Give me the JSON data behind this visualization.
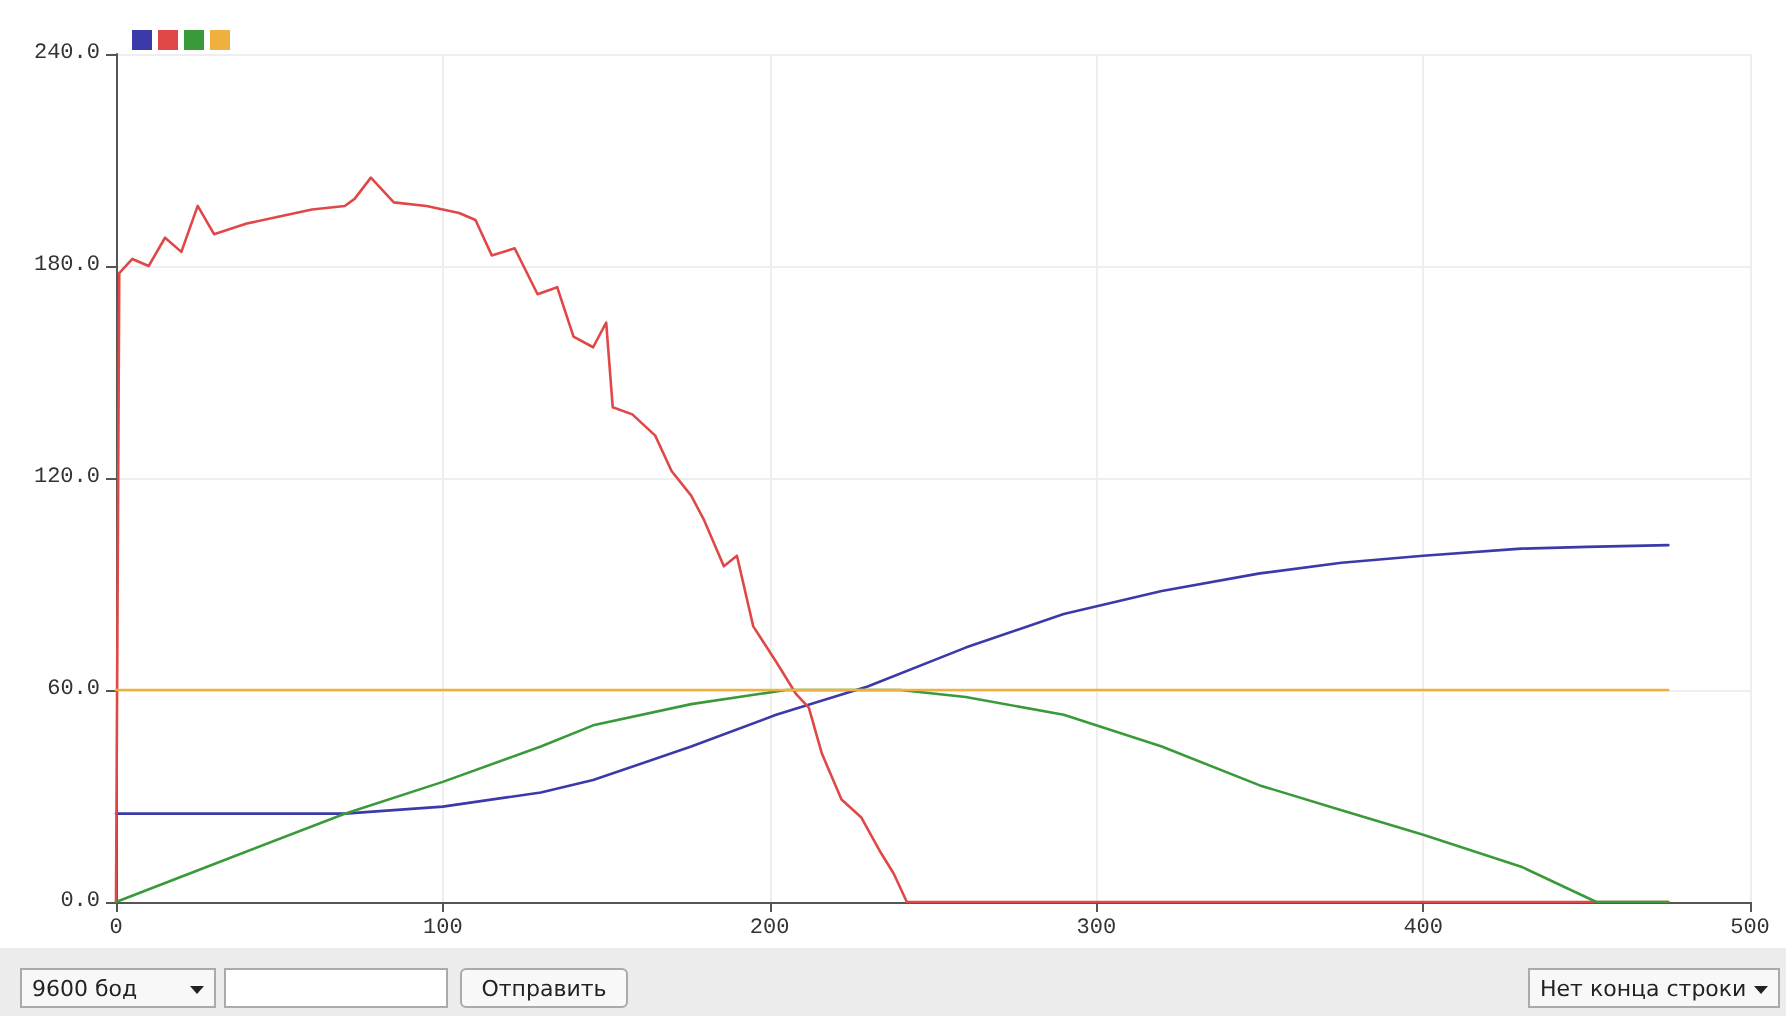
{
  "chart_data": {
    "type": "line",
    "xlim": [
      0,
      500
    ],
    "xticks": [
      0,
      100,
      200,
      300,
      400,
      500
    ],
    "ylim": [
      0,
      240
    ],
    "yticks": [
      {
        "value": 0,
        "label": "0.0"
      },
      {
        "value": 60,
        "label": "60.0"
      },
      {
        "value": 120,
        "label": "120.0"
      },
      {
        "value": 180,
        "label": "180.0"
      },
      {
        "value": 240,
        "label": "240.0"
      }
    ],
    "grid": true,
    "marker": "none",
    "line_style": "solid",
    "annotations": [
      "9600 бод",
      "Отправить",
      "Нет конца строки"
    ],
    "series": [
      {
        "color": "#3a3aa8",
        "x": [
          0,
          30,
          70,
          100,
          130,
          146,
          176,
          202,
          230,
          260,
          290,
          320,
          350,
          375,
          400,
          430,
          450,
          475
        ],
        "values": [
          25,
          25,
          25,
          27,
          31,
          34.5,
          44,
          53,
          61,
          72,
          81.5,
          88,
          93,
          96,
          98,
          100,
          100.5,
          101
        ]
      },
      {
        "color": "#e04848",
        "x": [
          0,
          1,
          5,
          10,
          15,
          20,
          25,
          30,
          40,
          50,
          60,
          70,
          73,
          78,
          85,
          95,
          105,
          110,
          115,
          122,
          129,
          135,
          140,
          146,
          150,
          152,
          158,
          165,
          170,
          176,
          180,
          186,
          190,
          195,
          202,
          208,
          212,
          216,
          222,
          228,
          234,
          238,
          242,
          243,
          300,
          400,
          475
        ],
        "values": [
          0,
          178,
          182,
          180,
          188,
          184,
          197,
          189,
          192,
          194,
          196,
          197,
          199,
          205,
          198,
          197,
          195,
          193,
          183,
          185,
          172,
          174,
          160,
          157,
          164,
          140,
          138,
          132,
          122,
          115,
          108,
          95,
          98,
          78,
          68,
          59,
          55,
          42,
          29,
          24,
          14,
          8,
          0,
          0,
          0,
          0,
          0
        ]
      },
      {
        "color": "#3a9a3a",
        "x": [
          0,
          35,
          70,
          100,
          130,
          146,
          176,
          205,
          220,
          240,
          260,
          290,
          320,
          350,
          375,
          400,
          430,
          453,
          475
        ],
        "values": [
          0,
          12.5,
          25,
          34,
          44,
          50,
          56,
          60,
          60,
          60,
          58,
          53,
          44,
          33,
          26,
          19,
          10,
          0,
          0
        ]
      },
      {
        "color": "#f0b040",
        "x": [
          0,
          475
        ],
        "values": [
          60,
          60
        ]
      }
    ]
  }
}
